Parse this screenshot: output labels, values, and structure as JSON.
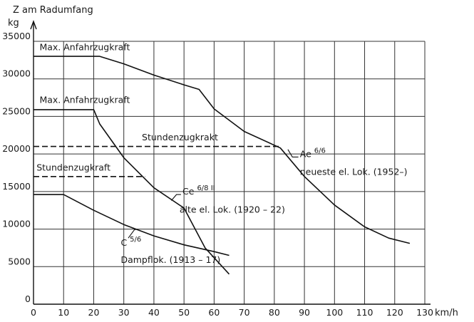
{
  "chart_data": {
    "type": "line",
    "xlabel": "km/h",
    "ylabel_top": "Z am Radumfang",
    "ylabel_unit": "kg",
    "xlim": [
      0,
      130
    ],
    "ylim": [
      0,
      35000
    ],
    "grid": true,
    "x_ticks": [
      0,
      10,
      20,
      30,
      40,
      50,
      60,
      70,
      80,
      90,
      100,
      110,
      120,
      130
    ],
    "y_ticks": [
      0,
      5000,
      10000,
      15000,
      20000,
      25000,
      30000,
      35000
    ],
    "x_tick_labels": [
      "0",
      "10",
      "20",
      "30",
      "40",
      "50",
      "60",
      "70",
      "80",
      "90",
      "100",
      "110",
      "120",
      "130"
    ],
    "y_tick_labels": [
      "0",
      "5000",
      "10000",
      "15000",
      "20000",
      "25000",
      "30000",
      "35000"
    ],
    "series": [
      {
        "x": [
          0,
          10,
          20,
          30,
          40,
          50,
          60,
          65
        ],
        "y": [
          14600,
          14600,
          12500,
          10600,
          9100,
          7900,
          7000,
          6500
        ],
        "style": "solid"
      },
      {
        "x": [
          0,
          20,
          22,
          30,
          40,
          50,
          57,
          65
        ],
        "y": [
          25900,
          25900,
          24000,
          19500,
          15500,
          12800,
          7500,
          4000
        ],
        "style": "solid"
      },
      {
        "x": [
          0,
          22,
          30,
          40,
          50,
          55,
          60,
          70,
          82,
          90,
          100,
          110,
          118,
          125
        ],
        "y": [
          33000,
          33000,
          32000,
          30500,
          29200,
          28600,
          26000,
          23000,
          20800,
          17000,
          13200,
          10300,
          8800,
          8100
        ],
        "style": "solid"
      },
      {
        "x": [
          0,
          82
        ],
        "y": [
          21000,
          21000
        ],
        "style": "dashed"
      },
      {
        "x": [
          0,
          37
        ],
        "y": [
          17000,
          17000
        ],
        "style": "dashed"
      }
    ],
    "annotations": [
      {
        "text": "Max. Anfahrzugkraft",
        "x": 2,
        "y": 33800
      },
      {
        "text": "Max. Anfahrzugkraft",
        "x": 2,
        "y": 26800
      },
      {
        "text": "Stundenzugkrakt",
        "x": 36,
        "y": 21800
      },
      {
        "text": "Stundenzugkraft",
        "x": 1,
        "y": 17800
      },
      {
        "text": "Ae ",
        "sup": "6/6",
        "x": 88.5,
        "y": 19600,
        "leader": [
          [
            88,
            19600
          ],
          [
            86,
            19600
          ],
          [
            84.5,
            20600
          ]
        ]
      },
      {
        "text": "neueste el. Lok. (1952–)",
        "x": 88.5,
        "y": 17200
      },
      {
        "text": "Ce ",
        "sup": "6/8 II",
        "x": 49.5,
        "y": 14600,
        "leader": [
          [
            49,
            14600
          ],
          [
            47.5,
            14600
          ],
          [
            45.8,
            13800
          ]
        ]
      },
      {
        "text": "alte el. Lok. (1920 – 22)",
        "x": 48.5,
        "y": 12200
      },
      {
        "text": "C ",
        "sup": "5/6",
        "x": 29,
        "y": 7800,
        "leader": [
          [
            31.5,
            8800
          ],
          [
            33.5,
            9900
          ],
          [
            34.5,
            10000
          ]
        ]
      },
      {
        "text": "Dampflok. (1913 – 17)",
        "x": 29,
        "y": 5500
      }
    ]
  }
}
